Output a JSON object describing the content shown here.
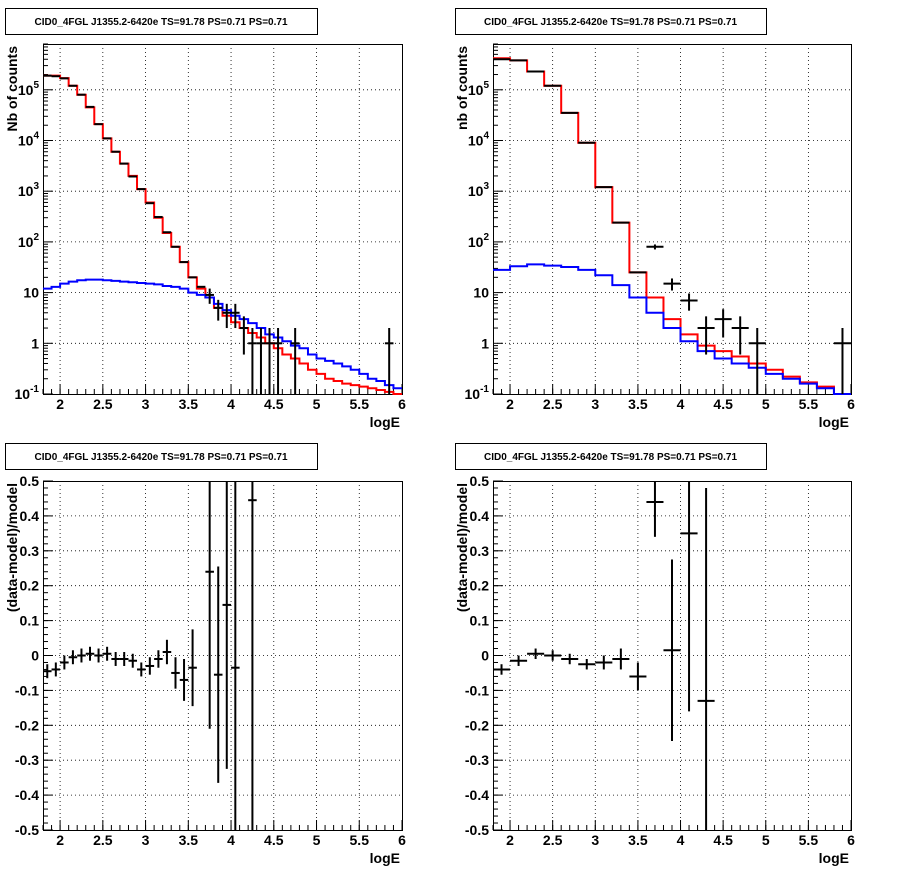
{
  "chart_data": [
    {
      "type": "line",
      "title": "CID0_4FGL J1355.2-6420e TS=91.78 PS=0.71 PS=0.71",
      "xlabel": "logE",
      "ylabel": "Nb of counts",
      "xlim": [
        1.8,
        6.0
      ],
      "ylim": [
        0.1,
        800000
      ],
      "yscale": "log",
      "grid": true,
      "x_ticks": [
        "2",
        "2.5",
        "3",
        "3.5",
        "4",
        "4.5",
        "5",
        "5.5",
        "6"
      ],
      "y_ticks": [
        "10^-1",
        "1",
        "10",
        "10^2",
        "10^3",
        "10^4",
        "10^5"
      ],
      "bin_edges": [
        1.8,
        1.9,
        2.0,
        2.1,
        2.2,
        2.3,
        2.4,
        2.5,
        2.6,
        2.7,
        2.8,
        2.9,
        3.0,
        3.1,
        3.2,
        3.3,
        3.4,
        3.5,
        3.6,
        3.7,
        3.8,
        3.9,
        4.0,
        4.1,
        4.2,
        4.3,
        4.4,
        4.5,
        4.6,
        4.7,
        4.8,
        4.9,
        5.0,
        5.1,
        5.2,
        5.3,
        5.4,
        5.5,
        5.6,
        5.7,
        5.8,
        5.9,
        6.0
      ],
      "series": [
        {
          "color": "#ff0000",
          "values": [
            190000,
            190000,
            170000,
            120000,
            80000,
            45000,
            21000,
            11000,
            6000,
            3500,
            2000,
            1100,
            600,
            300,
            150,
            80,
            40,
            20,
            12,
            8,
            5,
            3.5,
            2.6,
            2,
            1.6,
            1.3,
            1,
            0.8,
            0.6,
            0.5,
            0.4,
            0.3,
            0.25,
            0.2,
            0.18,
            0.16,
            0.15,
            0.14,
            0.13,
            0.12,
            0.11,
            0.1
          ]
        },
        {
          "color": "#0000ff",
          "values": [
            12,
            13,
            15,
            16.5,
            17.5,
            18,
            18,
            17.5,
            17,
            16.5,
            16,
            15.5,
            15,
            14.5,
            13.5,
            13,
            12,
            10,
            9,
            8,
            6,
            4.5,
            3.5,
            3,
            2.5,
            2,
            1.5,
            1.3,
            1.1,
            0.9,
            0.8,
            0.6,
            0.5,
            0.45,
            0.4,
            0.35,
            0.3,
            0.25,
            0.2,
            0.18,
            0.15,
            0.13
          ]
        }
      ],
      "data_points": [
        {
          "x": 1.85,
          "y": 190000,
          "err": 0
        },
        {
          "x": 1.95,
          "y": 185000,
          "err": 0
        },
        {
          "x": 2.05,
          "y": 168000,
          "err": 0
        },
        {
          "x": 2.15,
          "y": 120000,
          "err": 0
        },
        {
          "x": 2.25,
          "y": 80000,
          "err": 0
        },
        {
          "x": 2.35,
          "y": 46000,
          "err": 0
        },
        {
          "x": 2.45,
          "y": 21000,
          "err": 0
        },
        {
          "x": 2.55,
          "y": 11000,
          "err": 0
        },
        {
          "x": 2.65,
          "y": 6000,
          "err": 0
        },
        {
          "x": 2.75,
          "y": 3500,
          "err": 0
        },
        {
          "x": 2.85,
          "y": 1950,
          "err": 0
        },
        {
          "x": 2.95,
          "y": 1100,
          "err": 0
        },
        {
          "x": 3.05,
          "y": 580,
          "err": 0
        },
        {
          "x": 3.15,
          "y": 310,
          "err": 0
        },
        {
          "x": 3.25,
          "y": 155,
          "err": 0
        },
        {
          "x": 3.35,
          "y": 80,
          "err": 0
        },
        {
          "x": 3.45,
          "y": 40,
          "err": 0
        },
        {
          "x": 3.55,
          "y": 20,
          "err": 0
        },
        {
          "x": 3.65,
          "y": 13,
          "err": 0
        },
        {
          "x": 3.75,
          "y": 9,
          "err": 3
        },
        {
          "x": 3.85,
          "y": 5,
          "err": 2.2
        },
        {
          "x": 3.95,
          "y": 4,
          "err": 2
        },
        {
          "x": 4.05,
          "y": 4,
          "err": 2
        },
        {
          "x": 4.15,
          "y": 2,
          "err": 1.4
        },
        {
          "x": 4.25,
          "y": 1,
          "err": 1
        },
        {
          "x": 4.35,
          "y": 1,
          "err": 1
        },
        {
          "x": 4.45,
          "y": 1,
          "err": 1
        },
        {
          "x": 4.55,
          "y": 1,
          "err": 1
        },
        {
          "x": 4.75,
          "y": 1,
          "err": 1
        },
        {
          "x": 5.85,
          "y": 1,
          "err": 1
        }
      ]
    },
    {
      "type": "line",
      "title": "CID0_4FGL J1355.2-6420e TS=91.78 PS=0.71 PS=0.71",
      "xlabel": "logE",
      "ylabel": "nb of counts",
      "xlim": [
        1.8,
        6.0
      ],
      "ylim": [
        0.1,
        800000
      ],
      "yscale": "log",
      "grid": true,
      "x_ticks": [
        "2",
        "2.5",
        "3",
        "3.5",
        "4",
        "4.5",
        "5",
        "5.5",
        "6"
      ],
      "y_ticks": [
        "10^-1",
        "1",
        "10",
        "10^2",
        "10^3",
        "10^4",
        "10^5"
      ],
      "bin_edges": [
        1.8,
        2.0,
        2.2,
        2.4,
        2.6,
        2.8,
        3.0,
        3.2,
        3.4,
        3.6,
        3.8,
        4.0,
        4.2,
        4.4,
        4.6,
        4.8,
        5.0,
        5.2,
        5.4,
        5.6,
        5.8,
        6.0
      ],
      "series": [
        {
          "color": "#ff0000",
          "values": [
            420000,
            380000,
            230000,
            120000,
            35000,
            9000,
            1200,
            240,
            25,
            8,
            3,
            1.5,
            0.9,
            0.7,
            0.55,
            0.4,
            0.3,
            0.22,
            0.17,
            0.14,
            0.1
          ]
        },
        {
          "color": "#0000ff",
          "values": [
            28,
            33,
            36,
            34,
            32,
            28,
            22,
            14,
            8,
            4,
            2,
            1.1,
            0.7,
            0.5,
            0.4,
            0.33,
            0.25,
            0.2,
            0.16,
            0.13,
            0.1
          ]
        }
      ],
      "data_points": [
        {
          "x": 1.9,
          "y": 400000,
          "err": 0
        },
        {
          "x": 2.1,
          "y": 380000,
          "err": 0
        },
        {
          "x": 2.3,
          "y": 230000,
          "err": 0
        },
        {
          "x": 2.5,
          "y": 120000,
          "err": 0
        },
        {
          "x": 2.7,
          "y": 35000,
          "err": 0
        },
        {
          "x": 2.9,
          "y": 9000,
          "err": 0
        },
        {
          "x": 3.1,
          "y": 1200,
          "err": 0
        },
        {
          "x": 3.3,
          "y": 240,
          "err": 0
        },
        {
          "x": 3.5,
          "y": 25,
          "err": 0
        },
        {
          "x": 3.7,
          "y": 80,
          "err": 9
        },
        {
          "x": 3.9,
          "y": 15,
          "err": 4
        },
        {
          "x": 4.1,
          "y": 7,
          "err": 2.6
        },
        {
          "x": 4.3,
          "y": 2,
          "err": 1.4
        },
        {
          "x": 4.5,
          "y": 3,
          "err": 1.7
        },
        {
          "x": 4.7,
          "y": 2,
          "err": 1.4
        },
        {
          "x": 4.9,
          "y": 1,
          "err": 1
        },
        {
          "x": 5.9,
          "y": 1,
          "err": 1
        }
      ]
    },
    {
      "type": "scatter",
      "title": "CID0_4FGL J1355.2-6420e TS=91.78 PS=0.71 PS=0.71",
      "xlabel": "logE",
      "ylabel": "(data-model)/model",
      "xlim": [
        1.8,
        6.0
      ],
      "ylim": [
        -0.5,
        0.5
      ],
      "grid": true,
      "x_ticks": [
        "2",
        "2.5",
        "3",
        "3.5",
        "4",
        "4.5",
        "5",
        "5.5",
        "6"
      ],
      "y_ticks": [
        "-0.5",
        "-0.4",
        "-0.3",
        "-0.2",
        "-0.1",
        "0",
        "0.1",
        "0.2",
        "0.3",
        "0.4",
        "0.5"
      ],
      "x_halfwidth": 0.05,
      "points": [
        {
          "x": 1.85,
          "y": -0.045,
          "err": 0.02
        },
        {
          "x": 1.95,
          "y": -0.04,
          "err": 0.02
        },
        {
          "x": 2.05,
          "y": -0.02,
          "err": 0.02
        },
        {
          "x": 2.15,
          "y": -0.005,
          "err": 0.02
        },
        {
          "x": 2.25,
          "y": 0.0,
          "err": 0.02
        },
        {
          "x": 2.35,
          "y": 0.005,
          "err": 0.02
        },
        {
          "x": 2.45,
          "y": 0.0,
          "err": 0.02
        },
        {
          "x": 2.55,
          "y": 0.005,
          "err": 0.02
        },
        {
          "x": 2.65,
          "y": -0.01,
          "err": 0.02
        },
        {
          "x": 2.75,
          "y": -0.01,
          "err": 0.02
        },
        {
          "x": 2.85,
          "y": -0.015,
          "err": 0.02
        },
        {
          "x": 2.95,
          "y": -0.04,
          "err": 0.02
        },
        {
          "x": 3.05,
          "y": -0.03,
          "err": 0.025
        },
        {
          "x": 3.15,
          "y": -0.01,
          "err": 0.025
        },
        {
          "x": 3.25,
          "y": 0.01,
          "err": 0.035
        },
        {
          "x": 3.35,
          "y": -0.05,
          "err": 0.045
        },
        {
          "x": 3.45,
          "y": -0.07,
          "err": 0.06
        },
        {
          "x": 3.55,
          "y": -0.035,
          "err": 0.11
        },
        {
          "x": 3.75,
          "y": 0.24,
          "err": 0.45
        },
        {
          "x": 3.85,
          "y": -0.055,
          "err": 0.31
        },
        {
          "x": 3.95,
          "y": 0.145,
          "err": 0.47
        },
        {
          "x": 4.05,
          "y": -0.035,
          "err": 0.6
        },
        {
          "x": 4.25,
          "y": 0.445,
          "err": 1.0
        }
      ]
    },
    {
      "type": "scatter",
      "title": "CID0_4FGL J1355.2-6420e TS=91.78 PS=0.71 PS=0.71",
      "xlabel": "logE",
      "ylabel": "(data-model)/model",
      "xlim": [
        1.8,
        6.0
      ],
      "ylim": [
        -0.5,
        0.5
      ],
      "grid": true,
      "x_ticks": [
        "2",
        "2.5",
        "3",
        "3.5",
        "4",
        "4.5",
        "5",
        "5.5",
        "6"
      ],
      "y_ticks": [
        "-0.5",
        "-0.4",
        "-0.3",
        "-0.2",
        "-0.1",
        "0",
        "0.1",
        "0.2",
        "0.3",
        "0.4",
        "0.5"
      ],
      "x_halfwidth": 0.1,
      "points": [
        {
          "x": 1.9,
          "y": -0.04,
          "err": 0.015
        },
        {
          "x": 2.1,
          "y": -0.015,
          "err": 0.015
        },
        {
          "x": 2.3,
          "y": 0.005,
          "err": 0.015
        },
        {
          "x": 2.5,
          "y": 0.0,
          "err": 0.015
        },
        {
          "x": 2.7,
          "y": -0.01,
          "err": 0.015
        },
        {
          "x": 2.9,
          "y": -0.025,
          "err": 0.015
        },
        {
          "x": 3.1,
          "y": -0.02,
          "err": 0.02
        },
        {
          "x": 3.3,
          "y": -0.01,
          "err": 0.03
        },
        {
          "x": 3.5,
          "y": -0.06,
          "err": 0.04
        },
        {
          "x": 3.7,
          "y": 0.44,
          "err": 0.1
        },
        {
          "x": 3.9,
          "y": 0.015,
          "err": 0.26
        },
        {
          "x": 4.1,
          "y": 0.35,
          "err": 0.51
        },
        {
          "x": 4.3,
          "y": -0.13,
          "err": 0.61
        }
      ]
    }
  ]
}
